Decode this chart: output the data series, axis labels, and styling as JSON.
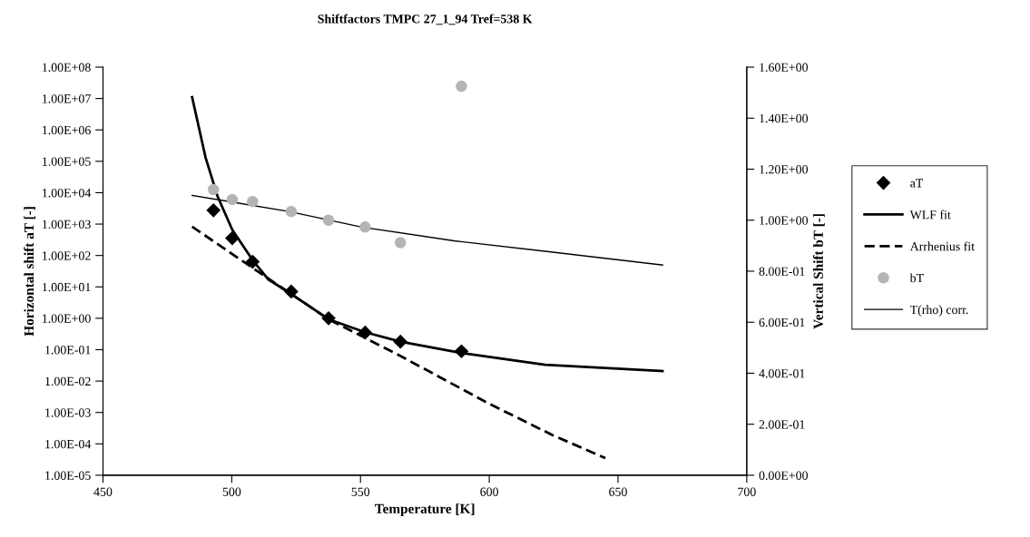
{
  "chart_data": {
    "type": "line",
    "title": "Shiftfactors TMPC 27_1_94 Tref=538 K",
    "xlabel": "Temperature [K]",
    "ylabel": "Horizontal shift aT [-]",
    "y2label": "Vertical Shift bT [-]",
    "log": "y",
    "grid": false,
    "legend": "right",
    "xlim": [
      450,
      700
    ],
    "xticks": [
      450,
      500,
      550,
      600,
      650,
      700
    ],
    "ylim": [
      1e-05,
      100000000.0
    ],
    "yticks": [
      {
        "value": 1e-05,
        "label": "1.00E-05"
      },
      {
        "value": 0.0001,
        "label": "1.00E-04"
      },
      {
        "value": 0.001,
        "label": "1.00E-03"
      },
      {
        "value": 0.01,
        "label": "1.00E-02"
      },
      {
        "value": 0.1,
        "label": "1.00E-01"
      },
      {
        "value": 1,
        "label": "1.00E+00"
      },
      {
        "value": 10,
        "label": "1.00E+01"
      },
      {
        "value": 100,
        "label": "1.00E+02"
      },
      {
        "value": 1000,
        "label": "1.00E+03"
      },
      {
        "value": 10000,
        "label": "1.00E+04"
      },
      {
        "value": 100000,
        "label": "1.00E+05"
      },
      {
        "value": 1000000,
        "label": "1.00E+06"
      },
      {
        "value": 10000000,
        "label": "1.00E+07"
      },
      {
        "value": 100000000,
        "label": "1.00E+08"
      }
    ],
    "y2lim": [
      0,
      1.6
    ],
    "y2ticks": [
      {
        "value": 0,
        "label": "0.00E+00"
      },
      {
        "value": 0.2,
        "label": "2.00E-01"
      },
      {
        "value": 0.4,
        "label": "4.00E-01"
      },
      {
        "value": 0.6,
        "label": "6.00E-01"
      },
      {
        "value": 0.8,
        "label": "8.00E-01"
      },
      {
        "value": 1.0,
        "label": "1.00E+00"
      },
      {
        "value": 1.2,
        "label": "1.20E+00"
      },
      {
        "value": 1.4,
        "label": "1.40E+00"
      },
      {
        "value": 1.6,
        "label": "1.60E+00"
      }
    ],
    "series": [
      {
        "name": "aT",
        "type": "scatter",
        "marker": "diamond",
        "color": "#000000",
        "x": [
          492.9,
          500.2,
          508.1,
          523.1,
          537.6,
          551.8,
          565.5,
          589.2
        ],
        "values": [
          2750,
          355,
          63,
          7.1,
          1.0,
          0.35,
          0.18,
          0.089
        ]
      },
      {
        "name": "WLF fit",
        "line_style": "solid",
        "color": "#000000",
        "x": [
          484.6,
          489.8,
          494.5,
          500.2,
          508.1,
          514.3,
          523.1,
          537.6,
          551.8,
          565.5,
          589.2,
          621.7,
          667.3
        ],
        "values": [
          11000000,
          135000,
          7600,
          660,
          71,
          17,
          5.9,
          0.93,
          0.36,
          0.18,
          0.078,
          0.033,
          0.021
        ]
      },
      {
        "name": "Arrhenius fit",
        "line_style": "dashed",
        "color": "#000000",
        "x": [
          484.6,
          511.5,
          537.6,
          565.2,
          600.5,
          624.6,
          645.1
        ],
        "values": [
          830,
          26,
          0.93,
          0.065,
          0.0018,
          0.00019,
          3.5e-05
        ]
      },
      {
        "name": "bT",
        "type": "scatter",
        "marker": "circle",
        "axis": "y2",
        "color": "#b4b4b4",
        "x": [
          492.9,
          500.2,
          508.1,
          523.1,
          537.6,
          551.8,
          565.5,
          589.2
        ],
        "values": [
          1.12,
          1.081,
          1.073,
          1.034,
          1.0,
          0.973,
          0.912,
          1.525
        ]
      },
      {
        "name": "T(rho) corr.",
        "line_style": "solid",
        "axis": "y2",
        "color": "#000000",
        "x": [
          484.6,
          522.2,
          550.5,
          586.4,
          621.7,
          667.3
        ],
        "values": [
          1.097,
          1.034,
          0.973,
          0.919,
          0.878,
          0.824
        ]
      }
    ]
  }
}
